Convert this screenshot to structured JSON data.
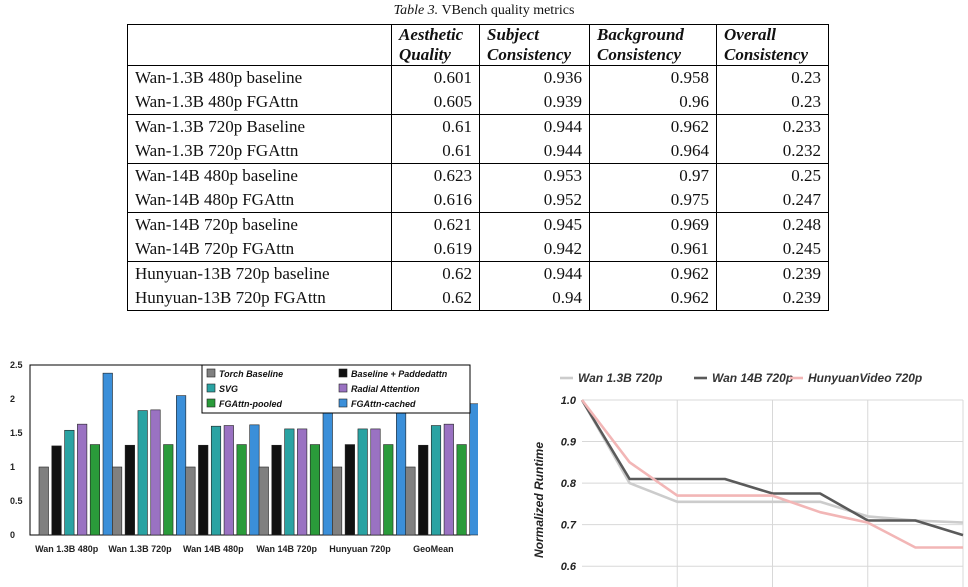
{
  "caption": {
    "label": "Table 3.",
    "text": "VBench quality metrics"
  },
  "table": {
    "headers": [
      [
        "",
        ""
      ],
      [
        "Aesthetic",
        "Quality"
      ],
      [
        "Subject",
        "Consistency"
      ],
      [
        "Background",
        "Consistency"
      ],
      [
        "Overall",
        "Consistency"
      ]
    ],
    "rows": [
      [
        "Wan-1.3B 480p baseline",
        "0.601",
        "0.936",
        "0.958",
        "0.23"
      ],
      [
        "Wan-1.3B 480p FGAttn",
        "0.605",
        "0.939",
        "0.96",
        "0.23"
      ],
      [
        "Wan-1.3B 720p Baseline",
        "0.61",
        "0.944",
        "0.962",
        "0.233"
      ],
      [
        "Wan-1.3B 720p FGAttn",
        "0.61",
        "0.944",
        "0.964",
        "0.232"
      ],
      [
        "Wan-14B 480p baseline",
        "0.623",
        "0.953",
        "0.97",
        "0.25"
      ],
      [
        "Wan-14B 480p FGAttn",
        "0.616",
        "0.952",
        "0.975",
        "0.247"
      ],
      [
        "Wan-14B 720p baseline",
        "0.621",
        "0.945",
        "0.969",
        "0.248"
      ],
      [
        "Wan-14B 720p FGAttn",
        "0.619",
        "0.942",
        "0.961",
        "0.245"
      ],
      [
        "Hunyuan-13B 720p baseline",
        "0.62",
        "0.944",
        "0.962",
        "0.239"
      ],
      [
        "Hunyuan-13B 720p FGAttn",
        "0.62",
        "0.94",
        "0.962",
        "0.239"
      ]
    ]
  },
  "chart_data": [
    {
      "type": "bar",
      "categories": [
        "Wan 1.3B 480p",
        "Wan 1.3B 720p",
        "Wan 14B 480p",
        "Wan 14B 720p",
        "Hunyuan 720p",
        "GeoMean"
      ],
      "ylim": [
        0,
        2.5
      ],
      "yticks": [
        "0",
        "0.5",
        "1",
        "1.5",
        "2",
        "2.5"
      ],
      "legend_position": "top-right",
      "grid": false,
      "series": [
        {
          "name": "Torch Baseline",
          "color": "#808080",
          "values": [
            1,
            1,
            1,
            1,
            1,
            1
          ]
        },
        {
          "name": "Baseline + Paddedattn",
          "color": "#111111",
          "values": [
            1.31,
            1.32,
            1.32,
            1.32,
            1.33,
            1.32
          ]
        },
        {
          "name": "SVG",
          "color": "#2aa3a3",
          "values": [
            1.54,
            1.83,
            1.6,
            1.56,
            1.56,
            1.61
          ]
        },
        {
          "name": "Radial Attention",
          "color": "#9a72c2",
          "values": [
            1.63,
            1.84,
            1.61,
            1.56,
            1.56,
            1.63
          ]
        },
        {
          "name": "FGAttn-pooled",
          "color": "#2a9b3a",
          "values": [
            1.33,
            1.33,
            1.33,
            1.33,
            1.33,
            1.33
          ]
        },
        {
          "name": "FGAttn-cached",
          "color": "#3b8fd9",
          "values": [
            2.38,
            2.05,
            1.62,
            1.89,
            1.81,
            1.93
          ]
        }
      ]
    },
    {
      "type": "line",
      "ylabel": "Normalized Runtime",
      "ylim": [
        0.55,
        1.0
      ],
      "yticks": [
        "0.6",
        "0.7",
        "0.8",
        "0.9",
        "1.0"
      ],
      "x": [
        0,
        1,
        2,
        3,
        4,
        5,
        6,
        7,
        8
      ],
      "xlim": [
        0,
        8
      ],
      "grid": true,
      "legend_position": "top",
      "series": [
        {
          "name": "Wan 1.3B 720p",
          "color": "#cccccc",
          "values": [
            1.0,
            0.8,
            0.755,
            0.755,
            0.755,
            0.755,
            0.72,
            0.71,
            0.705
          ]
        },
        {
          "name": "Wan 14B 720p",
          "color": "#5a5a5a",
          "values": [
            1.0,
            0.81,
            0.81,
            0.81,
            0.775,
            0.775,
            0.71,
            0.71,
            0.675
          ]
        },
        {
          "name": "HunyuanVideo 720p",
          "color": "#f2b6b6",
          "values": [
            1.0,
            0.85,
            0.77,
            0.77,
            0.77,
            0.73,
            0.705,
            0.645,
            0.645
          ]
        }
      ]
    }
  ]
}
